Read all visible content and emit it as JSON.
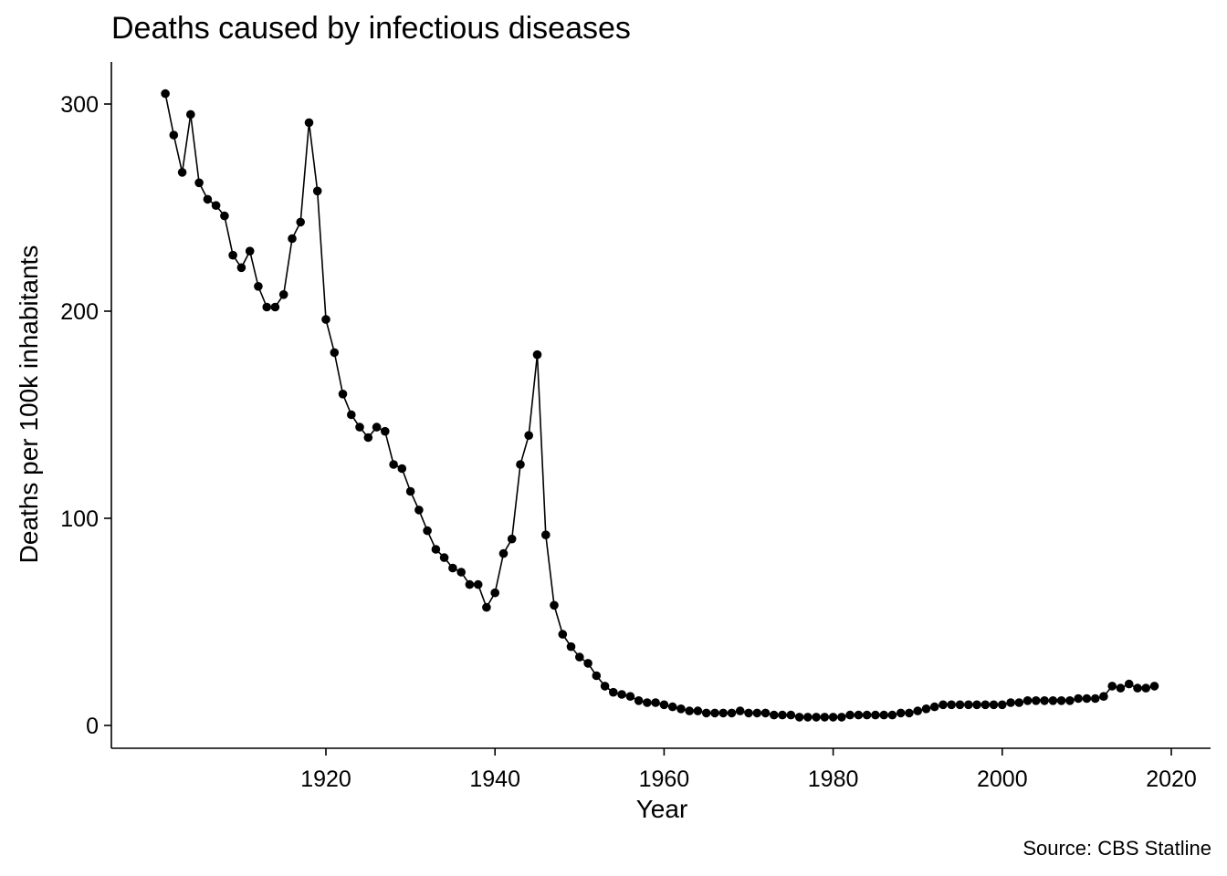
{
  "chart_data": {
    "type": "line",
    "title": "Deaths caused by infectious diseases",
    "caption": "Source: CBS Statline",
    "xlabel": "Year",
    "ylabel": "Deaths per 100k inhabitants",
    "xlim": [
      1900,
      2020
    ],
    "ylim": [
      0,
      300
    ],
    "x_ticks": [
      1920,
      1940,
      1960,
      1980,
      2000,
      2020
    ],
    "y_ticks": [
      0,
      100,
      200,
      300
    ],
    "grid": false,
    "legend": "none",
    "line_color": "#000000",
    "marker": "circle",
    "series": [
      {
        "x": [
          1901,
          1902,
          1903,
          1904,
          1905,
          1906,
          1907,
          1908,
          1909,
          1910,
          1911,
          1912,
          1913,
          1914,
          1915,
          1916,
          1917,
          1918,
          1919,
          1920,
          1921,
          1922,
          1923,
          1924,
          1925,
          1926,
          1927,
          1928,
          1929,
          1930,
          1931,
          1932,
          1933,
          1934,
          1935,
          1936,
          1937,
          1938,
          1939,
          1940,
          1941,
          1942,
          1943,
          1944,
          1945,
          1946,
          1947,
          1948,
          1949,
          1950,
          1951,
          1952,
          1953,
          1954,
          1955,
          1956,
          1957,
          1958,
          1959,
          1960,
          1961,
          1962,
          1963,
          1964,
          1965,
          1966,
          1967,
          1968,
          1969,
          1970,
          1971,
          1972,
          1973,
          1974,
          1975,
          1976,
          1977,
          1978,
          1979,
          1980,
          1981,
          1982,
          1983,
          1984,
          1985,
          1986,
          1987,
          1988,
          1989,
          1990,
          1991,
          1992,
          1993,
          1994,
          1995,
          1996,
          1997,
          1998,
          1999,
          2000,
          2001,
          2002,
          2003,
          2004,
          2005,
          2006,
          2007,
          2008,
          2009,
          2010,
          2011,
          2012,
          2013,
          2014,
          2015,
          2016,
          2017,
          2018
        ],
        "values": [
          305,
          285,
          267,
          295,
          262,
          254,
          251,
          246,
          227,
          221,
          229,
          212,
          202,
          202,
          208,
          235,
          243,
          291,
          258,
          196,
          180,
          160,
          150,
          144,
          139,
          144,
          142,
          126,
          124,
          113,
          104,
          94,
          85,
          81,
          76,
          74,
          68,
          68,
          57,
          64,
          83,
          90,
          126,
          140,
          179,
          92,
          58,
          44,
          38,
          33,
          30,
          24,
          19,
          16,
          15,
          14,
          12,
          11,
          11,
          10,
          9,
          8,
          7,
          7,
          6,
          6,
          6,
          6,
          7,
          6,
          6,
          6,
          5,
          5,
          5,
          4,
          4,
          4,
          4,
          4,
          4,
          5,
          5,
          5,
          5,
          5,
          5,
          6,
          6,
          7,
          8,
          9,
          10,
          10,
          10,
          10,
          10,
          10,
          10,
          10,
          11,
          11,
          12,
          12,
          12,
          12,
          12,
          12,
          13,
          13,
          13,
          14,
          19,
          18,
          20,
          18,
          18,
          19
        ]
      }
    ]
  }
}
